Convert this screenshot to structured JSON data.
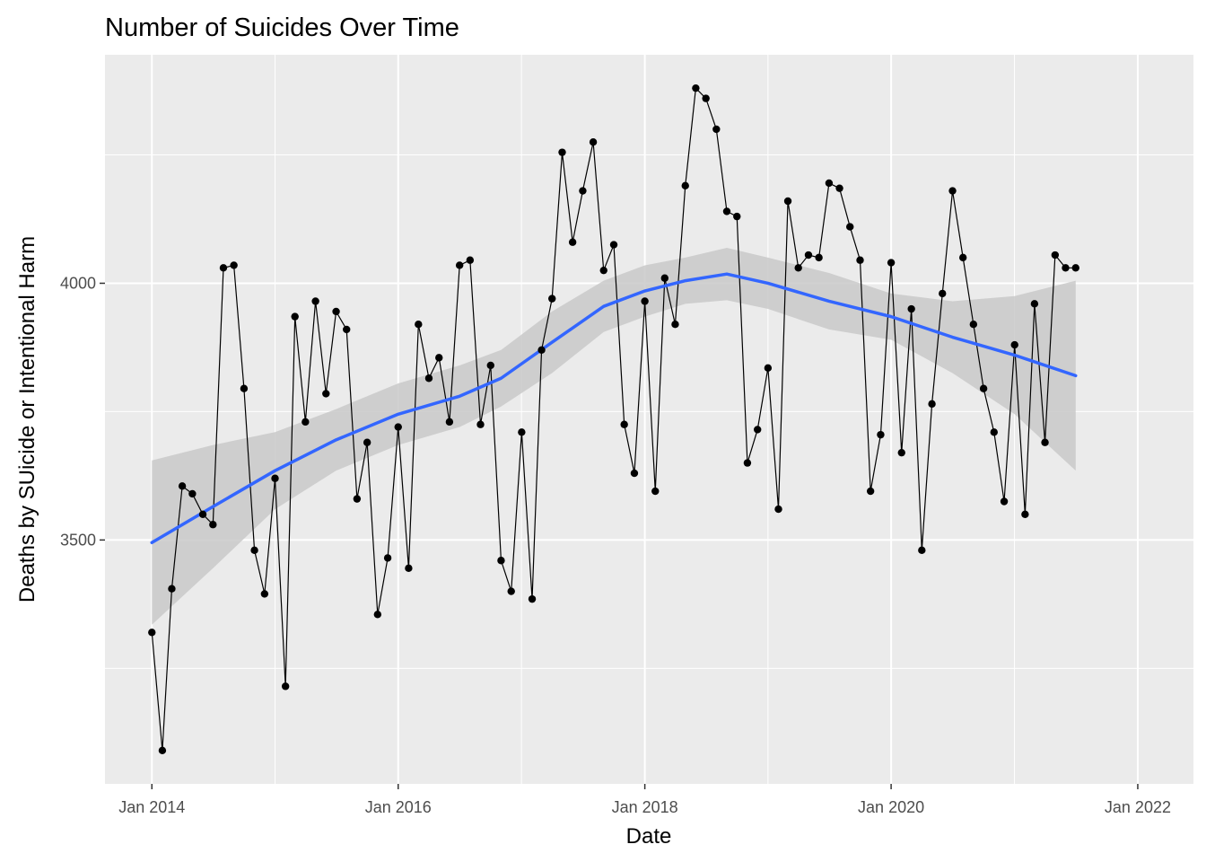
{
  "chart_data": {
    "type": "line",
    "title": "Number of Suicides Over Time",
    "xlabel": "Date",
    "ylabel": "Deaths by SUicide or Intentional Harm",
    "x_type": "date",
    "xlim": [
      "2013-08-15",
      "2022-06-15"
    ],
    "ylim": [
      3025,
      4445
    ],
    "x_ticks": [
      "2014-01-01",
      "2016-01-01",
      "2018-01-01",
      "2020-01-01",
      "2022-01-01"
    ],
    "x_tick_labels": [
      "Jan 2014",
      "Jan 2016",
      "Jan 2018",
      "Jan 2020",
      "Jan 2022"
    ],
    "y_ticks": [
      3500,
      4000
    ],
    "y_tick_labels": [
      "3500",
      "4000"
    ],
    "grid": true,
    "panel_background": "#ebebeb",
    "colors": {
      "points": "#000000",
      "line": "#000000",
      "smooth": "#3366ff",
      "band": "#c9c9c9"
    },
    "series": [
      {
        "type": "line+points",
        "x": [
          "2014-01-01",
          "2014-02-01",
          "2014-03-01",
          "2014-04-01",
          "2014-05-01",
          "2014-06-01",
          "2014-07-01",
          "2014-08-01",
          "2014-09-01",
          "2014-10-01",
          "2014-11-01",
          "2014-12-01",
          "2015-01-01",
          "2015-02-01",
          "2015-03-01",
          "2015-04-01",
          "2015-05-01",
          "2015-06-01",
          "2015-07-01",
          "2015-08-01",
          "2015-09-01",
          "2015-10-01",
          "2015-11-01",
          "2015-12-01",
          "2016-01-01",
          "2016-02-01",
          "2016-03-01",
          "2016-04-01",
          "2016-05-01",
          "2016-06-01",
          "2016-07-01",
          "2016-08-01",
          "2016-09-01",
          "2016-10-01",
          "2016-11-01",
          "2016-12-01",
          "2017-01-01",
          "2017-02-01",
          "2017-03-01",
          "2017-04-01",
          "2017-05-01",
          "2017-06-01",
          "2017-07-01",
          "2017-08-01",
          "2017-09-01",
          "2017-10-01",
          "2017-11-01",
          "2017-12-01",
          "2018-01-01",
          "2018-02-01",
          "2018-03-01",
          "2018-04-01",
          "2018-05-01",
          "2018-06-01",
          "2018-07-01",
          "2018-08-01",
          "2018-09-01",
          "2018-10-01",
          "2018-11-01",
          "2018-12-01",
          "2019-01-01",
          "2019-02-01",
          "2019-03-01",
          "2019-04-01",
          "2019-05-01",
          "2019-06-01",
          "2019-07-01",
          "2019-08-01",
          "2019-09-01",
          "2019-10-01",
          "2019-11-01",
          "2019-12-01",
          "2020-01-01",
          "2020-02-01",
          "2020-03-01",
          "2020-04-01",
          "2020-05-01",
          "2020-06-01",
          "2020-07-01",
          "2020-08-01",
          "2020-09-01",
          "2020-10-01",
          "2020-11-01",
          "2020-12-01",
          "2021-01-01",
          "2021-02-01",
          "2021-03-01",
          "2021-04-01",
          "2021-05-01",
          "2021-06-01",
          "2021-07-01"
        ],
        "y": [
          3320,
          3090,
          3405,
          3605,
          3590,
          3550,
          3530,
          4030,
          4035,
          3795,
          3480,
          3395,
          3620,
          3215,
          3935,
          3730,
          3965,
          3785,
          3945,
          3910,
          3580,
          3690,
          3355,
          3465,
          3720,
          3445,
          3920,
          3815,
          3855,
          3730,
          4035,
          4045,
          3725,
          3840,
          3460,
          3400,
          3710,
          3385,
          3870,
          3970,
          4255,
          4080,
          4180,
          4275,
          4025,
          4075,
          3725,
          3630,
          3965,
          3595,
          4010,
          3920,
          4190,
          4380,
          4360,
          4300,
          4140,
          4130,
          3650,
          3715,
          3835,
          3560,
          4160,
          4030,
          4055,
          4050,
          4195,
          4185,
          4110,
          4045,
          3595,
          3705,
          4040,
          3670,
          3950,
          3480,
          3765,
          3980,
          4180,
          4050,
          3920,
          3795,
          3710,
          3575,
          3880,
          3550,
          3960,
          3690,
          4055,
          4030,
          4030
        ]
      },
      {
        "type": "smooth",
        "x": [
          "2014-01-01",
          "2014-07-01",
          "2015-01-01",
          "2015-07-01",
          "2016-01-01",
          "2016-07-01",
          "2016-11-01",
          "2017-04-01",
          "2017-09-01",
          "2018-01-01",
          "2018-05-01",
          "2018-09-01",
          "2019-01-01",
          "2019-07-01",
          "2020-01-01",
          "2020-07-01",
          "2021-01-01",
          "2021-07-01"
        ],
        "y": [
          3495,
          3565,
          3635,
          3695,
          3745,
          3780,
          3815,
          3885,
          3955,
          3985,
          4005,
          4018,
          4000,
          3965,
          3935,
          3895,
          3860,
          3820
        ],
        "lower": [
          3335,
          3445,
          3560,
          3635,
          3685,
          3720,
          3760,
          3825,
          3905,
          3935,
          3960,
          3967,
          3950,
          3910,
          3890,
          3825,
          3745,
          3635
        ],
        "upper": [
          3655,
          3685,
          3710,
          3755,
          3805,
          3840,
          3870,
          3945,
          4005,
          4035,
          4050,
          4069,
          4050,
          4020,
          3980,
          3965,
          3975,
          4005
        ]
      }
    ]
  }
}
